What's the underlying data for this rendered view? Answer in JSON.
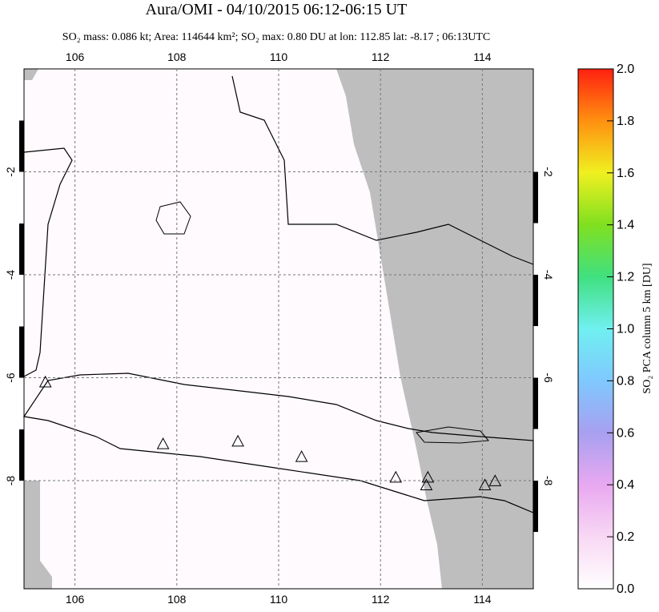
{
  "chart_data": {
    "type": "map",
    "title": "Aura/OMI - 04/10/2015 06:12-06:15 UT",
    "subtitle": "SO₂ mass: 0.086 kt; Area: 114644 km²; SO₂ max: 0.80 DU at lon: 112.85 lat: -8.17 ; 06:13UTC",
    "xlim": [
      105,
      115
    ],
    "xticks": [
      106,
      108,
      110,
      112,
      114
    ],
    "ylim": [
      -10.1,
      0
    ],
    "yticks": [
      -2,
      -4,
      -6,
      -8
    ],
    "grid": true,
    "volcanoes": {
      "lon": [
        105.42,
        107.73,
        109.2,
        110.45,
        112.3,
        112.93,
        112.9,
        114.05,
        114.25
      ],
      "lat": [
        -6.1,
        -7.3,
        -7.25,
        -7.55,
        -7.95,
        -7.95,
        -8.1,
        -8.1,
        -8.02
      ]
    },
    "colorbar": {
      "label": "SO₂ PCA column 5 km [DU]",
      "lim": [
        0,
        2
      ],
      "ticks": [
        {
          "value": 0,
          "label": "0.0"
        },
        0.2,
        0.4,
        0.6,
        0.8,
        {
          "value": 1,
          "label": "1.0"
        },
        1.2,
        1.4,
        1.6,
        1.8,
        {
          "value": 2,
          "label": "2.0"
        }
      ]
    }
  }
}
